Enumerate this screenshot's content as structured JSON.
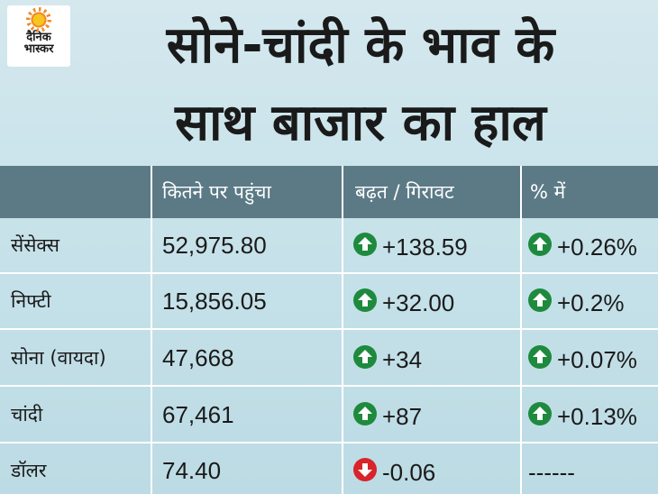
{
  "brand": {
    "line1": "दैनिक",
    "line2": "भास्कर"
  },
  "headline": {
    "line1": "सोने-चांदी के भाव के",
    "line2": "साथ बाजार का हाल"
  },
  "table": {
    "headers": [
      "",
      "कितने पर पहुंचा",
      "बढ़त / गिरावट",
      "% में"
    ],
    "rows": [
      {
        "name": "सेंसेक्स",
        "value": "52,975.80",
        "change": "+138.59",
        "change_dir": "up",
        "pct": "+0.26%",
        "pct_dir": "up"
      },
      {
        "name": "निफ्टी",
        "value": "15,856.05",
        "change": "+32.00",
        "change_dir": "up",
        "pct": "+0.2%",
        "pct_dir": "up"
      },
      {
        "name": "सोना (वायदा)",
        "value": "47,668",
        "change": "+34",
        "change_dir": "up",
        "pct": "+0.07%",
        "pct_dir": "up"
      },
      {
        "name": "चांदी",
        "value": "67,461",
        "change": "+87",
        "change_dir": "up",
        "pct": "+0.13%",
        "pct_dir": "up"
      },
      {
        "name": "डॉलर",
        "value": "74.40",
        "change": "-0.06",
        "change_dir": "down",
        "pct": "------",
        "pct_dir": "none"
      }
    ]
  },
  "colors": {
    "up": "#1e8a3e",
    "down": "#d8242a",
    "header_bg": "#5b7a86"
  },
  "icons": {
    "up": "up-arrow-icon",
    "down": "down-arrow-icon"
  }
}
